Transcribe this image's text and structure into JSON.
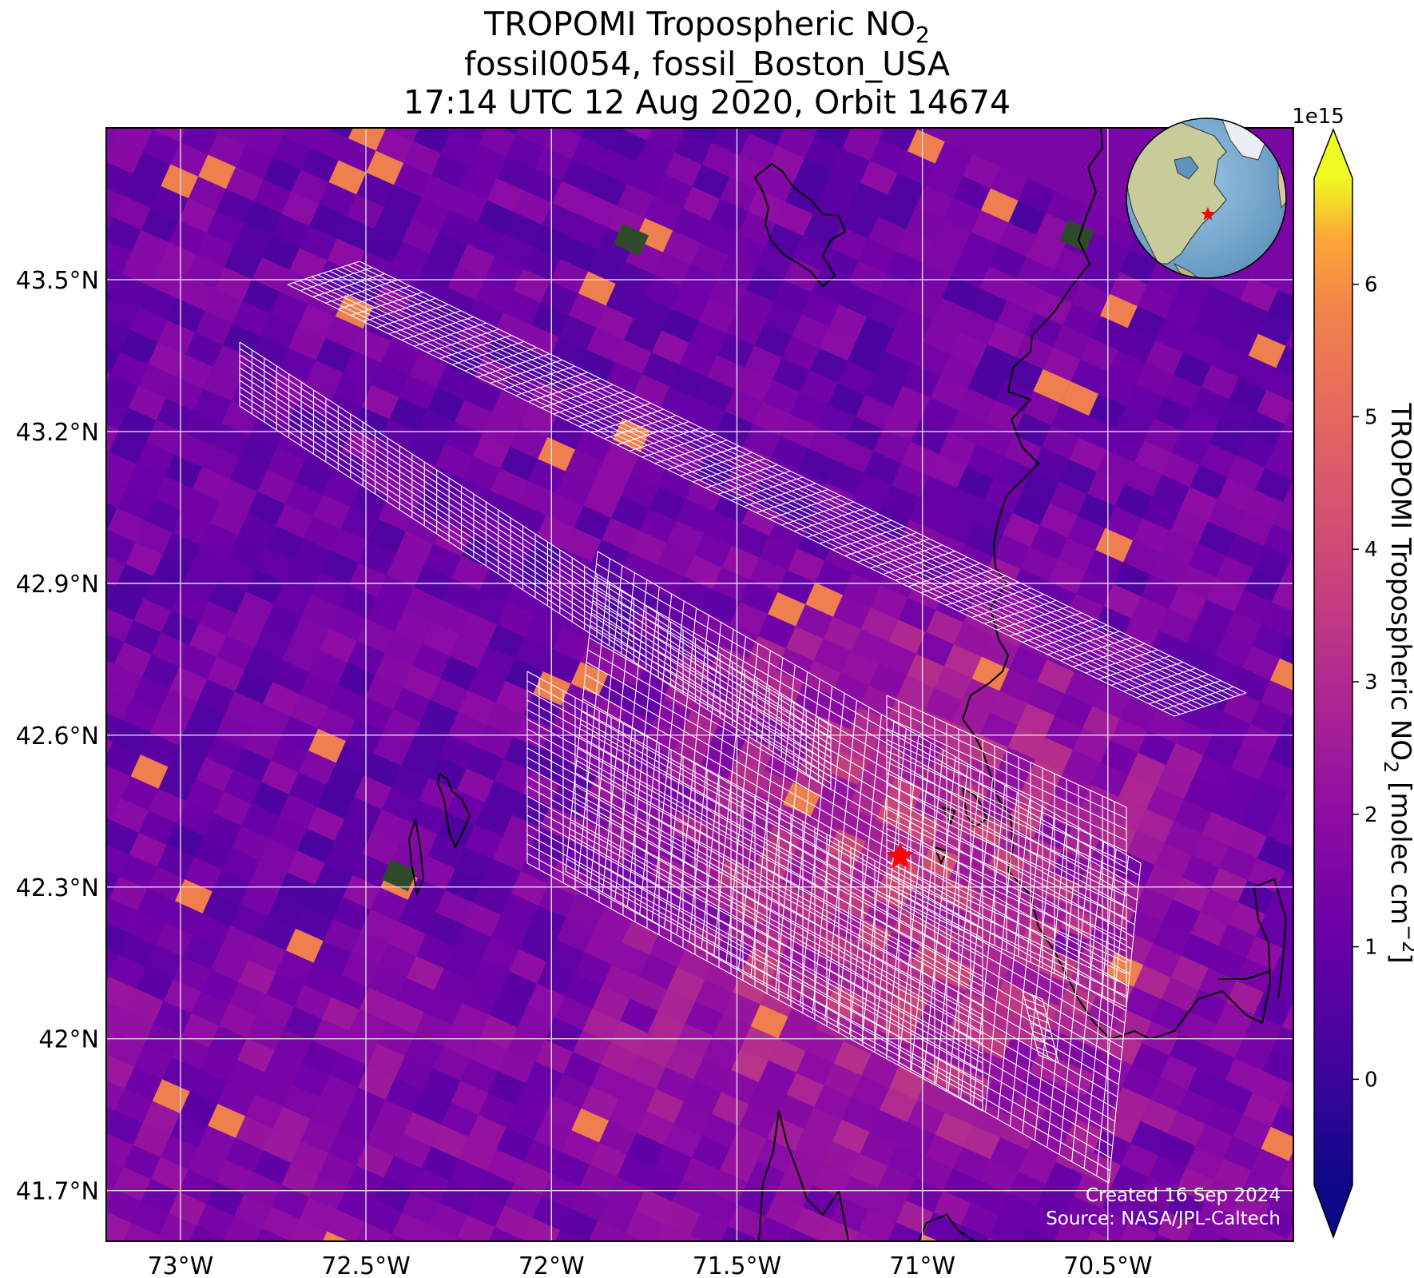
{
  "title": {
    "line1_prefix": "TROPOMI Tropospheric NO",
    "line1_sub": "2",
    "line2": "fossil0054, fossil_Boston_USA",
    "line3": "17:14 UTC 12 Aug 2020, Orbit 14674"
  },
  "map": {
    "lon_range": [
      -73.2,
      -70.0
    ],
    "lat_range": [
      41.6,
      43.8
    ],
    "x_ticks": [
      {
        "value": -73.0,
        "label": "73°W"
      },
      {
        "value": -72.5,
        "label": "72.5°W"
      },
      {
        "value": -72.0,
        "label": "72°W"
      },
      {
        "value": -71.5,
        "label": "71.5°W"
      },
      {
        "value": -71.0,
        "label": "71°W"
      },
      {
        "value": -70.5,
        "label": "70.5°W"
      }
    ],
    "y_ticks": [
      {
        "value": 43.5,
        "label": "43.5°N"
      },
      {
        "value": 43.2,
        "label": "43.2°N"
      },
      {
        "value": 42.9,
        "label": "42.9°N"
      },
      {
        "value": 42.6,
        "label": "42.6°N"
      },
      {
        "value": 42.3,
        "label": "42.3°N"
      },
      {
        "value": 42.0,
        "label": "42°N"
      },
      {
        "value": 41.7,
        "label": "41.7°N"
      }
    ],
    "site_marker": {
      "lon": -71.06,
      "lat": 42.36,
      "color": "#ff0000"
    },
    "grid": true,
    "inset_globe": {
      "center_lon": -71.06,
      "center_lat": 42.36,
      "location": "top-right"
    }
  },
  "colorbar": {
    "label_prefix": "TROPOMI Tropospheric NO",
    "label_sub": "2",
    "label_suffix": " [molec cm",
    "label_sup": "−2",
    "label_end": "]",
    "multiplier": "1e15",
    "vmin": -0.8,
    "vmax": 6.8,
    "ticks": [
      {
        "value": 0,
        "label": "0"
      },
      {
        "value": 1,
        "label": "1"
      },
      {
        "value": 2,
        "label": "2"
      },
      {
        "value": 3,
        "label": "3"
      },
      {
        "value": 4,
        "label": "4"
      },
      {
        "value": 5,
        "label": "5"
      },
      {
        "value": 6,
        "label": "6"
      }
    ],
    "colormap": "plasma",
    "extend": "both"
  },
  "footer": {
    "created": "Created 16 Sep 2024",
    "source": "Source: NASA/JPL-Caltech"
  }
}
